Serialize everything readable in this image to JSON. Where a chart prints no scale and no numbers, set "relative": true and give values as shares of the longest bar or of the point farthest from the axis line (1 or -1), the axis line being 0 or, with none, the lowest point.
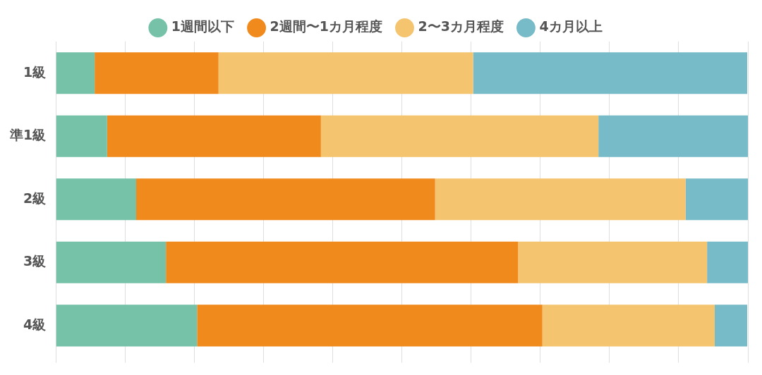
{
  "chart_data": {
    "type": "bar",
    "orientation": "horizontal",
    "stacked": true,
    "relative": true,
    "grid": "x",
    "legend": "top",
    "categories": [
      "1級",
      "準1級",
      "2級",
      "3級",
      "4級"
    ],
    "series": [
      {
        "name": "1週間以下",
        "color": "#75c2a8",
        "values": [
          0.056,
          0.074,
          0.116,
          0.159,
          0.204
        ]
      },
      {
        "name": "2週間〜1カ月程度",
        "color": "#f18a1c",
        "values": [
          0.179,
          0.309,
          0.432,
          0.509,
          0.499
        ]
      },
      {
        "name": "2〜3カ月程度",
        "color": "#f4c46e",
        "values": [
          0.368,
          0.401,
          0.362,
          0.273,
          0.249
        ]
      },
      {
        "name": "4カ月以上",
        "color": "#78bbc8",
        "values": [
          0.396,
          0.216,
          0.09,
          0.059,
          0.047
        ]
      }
    ]
  }
}
